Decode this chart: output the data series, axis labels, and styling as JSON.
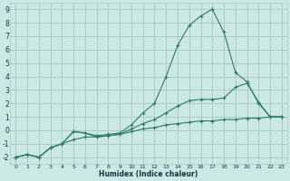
{
  "xlabel": "Humidex (Indice chaleur)",
  "x": [
    0,
    1,
    2,
    3,
    4,
    5,
    6,
    7,
    8,
    9,
    10,
    11,
    12,
    13,
    14,
    15,
    16,
    17,
    18,
    19,
    20,
    21,
    22,
    23
  ],
  "line_low": [
    -2.0,
    -1.8,
    -2.0,
    -1.3,
    -1.0,
    -0.7,
    -0.5,
    -0.5,
    -0.4,
    -0.3,
    -0.1,
    0.1,
    0.2,
    0.4,
    0.5,
    0.6,
    0.7,
    0.7,
    0.8,
    0.8,
    0.9,
    0.9,
    1.0,
    1.0
  ],
  "line_high": [
    -2.0,
    -1.8,
    -2.0,
    -1.3,
    -1.0,
    -0.1,
    -0.2,
    -0.4,
    -0.3,
    -0.2,
    0.4,
    1.3,
    2.0,
    4.0,
    6.3,
    7.8,
    8.5,
    9.0,
    7.3,
    4.3,
    3.6,
    2.0,
    1.0,
    1.0
  ],
  "line_mid": [
    -2.0,
    -1.8,
    -2.0,
    -1.3,
    -1.0,
    -0.1,
    -0.2,
    -0.5,
    -0.4,
    -0.3,
    0.1,
    0.5,
    0.8,
    1.3,
    1.8,
    2.2,
    2.3,
    2.3,
    2.4,
    3.2,
    3.5,
    2.1,
    1.0,
    1.0
  ],
  "line_color": "#2e7b65",
  "bg_color": "#cce8e4",
  "grid_color": "#a8ccc8",
  "ylim": [
    -2,
    9
  ],
  "xlim": [
    0,
    23
  ],
  "yticks": [
    -2,
    -1,
    0,
    1,
    2,
    3,
    4,
    5,
    6,
    7,
    8,
    9
  ],
  "xticks": [
    0,
    1,
    2,
    3,
    4,
    5,
    6,
    7,
    8,
    9,
    10,
    11,
    12,
    13,
    14,
    15,
    16,
    17,
    18,
    19,
    20,
    21,
    22,
    23
  ]
}
